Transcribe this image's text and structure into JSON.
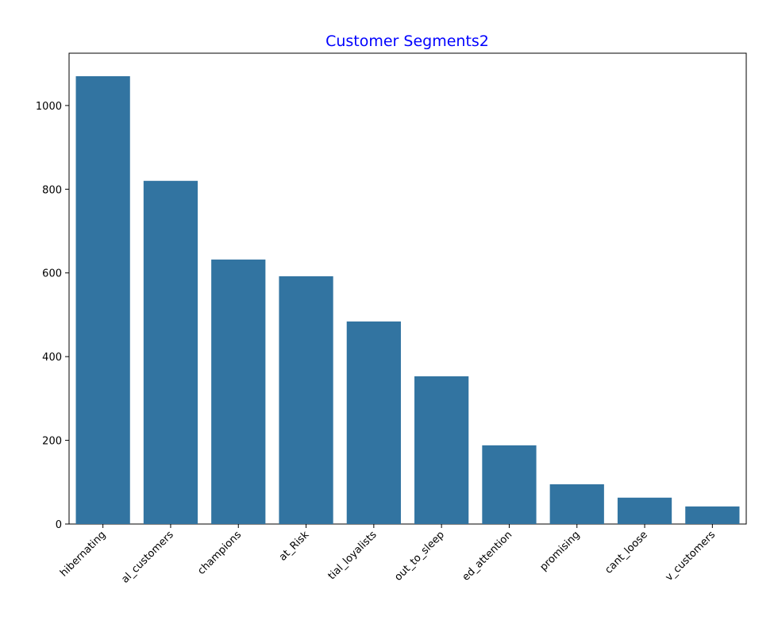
{
  "chart_data": {
    "type": "bar",
    "title": "Customer Segments2",
    "categories": [
      "hibernating",
      "al_customers",
      "champions",
      "at_Risk",
      "tial_loyalists",
      "out_to_sleep",
      "ed_attention",
      "promising",
      "cant_loose",
      "v_customers"
    ],
    "values": [
      1070,
      820,
      632,
      592,
      484,
      353,
      188,
      95,
      63,
      42
    ],
    "color": "#3274a1",
    "ylim": [
      0,
      1125
    ],
    "yticks": [
      0,
      200,
      400,
      600,
      800,
      1000
    ]
  }
}
